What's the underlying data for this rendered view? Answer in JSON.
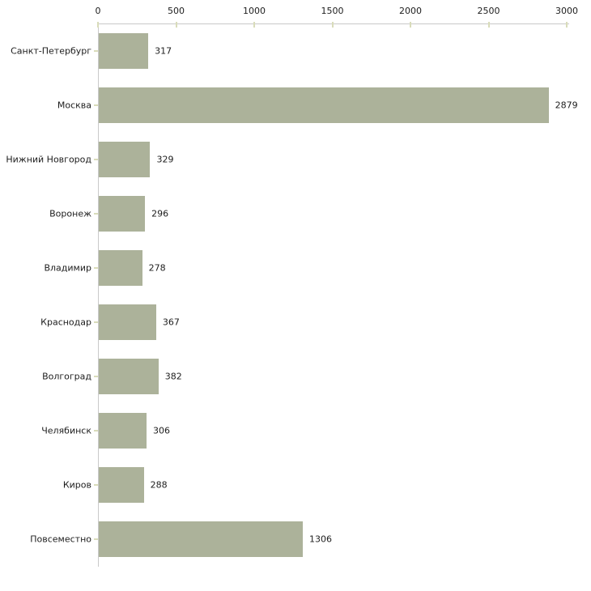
{
  "chart_data": {
    "type": "bar",
    "orientation": "horizontal",
    "title": "",
    "xlabel": "",
    "ylabel": "",
    "categories": [
      "Санкт-Петербург",
      "Москва",
      "Нижний Новгород",
      "Воронеж",
      "Владимир",
      "Краснодар",
      "Волгоград",
      "Челябинск",
      "Киров",
      "Повсеместно"
    ],
    "values": [
      317,
      2879,
      329,
      296,
      278,
      367,
      382,
      306,
      288,
      1306
    ],
    "value_labels": [
      "317",
      "2879",
      "329",
      "296",
      "278",
      "367",
      "382",
      "306",
      "288",
      "1306"
    ],
    "x_ticks": [
      0,
      500,
      1000,
      1500,
      2000,
      2500,
      3000
    ],
    "x_tick_labels": [
      "0",
      "500",
      "1000",
      "1500",
      "2000",
      "2500",
      "3000"
    ],
    "xlim": [
      0,
      3000
    ],
    "grid": false,
    "legend": false,
    "colors": {
      "bar": "#acb29a",
      "axis_line": "#c9c9c9",
      "tick_mark": "#d9dcba",
      "text": "#1c1c1c",
      "background": "#ffffff"
    }
  }
}
